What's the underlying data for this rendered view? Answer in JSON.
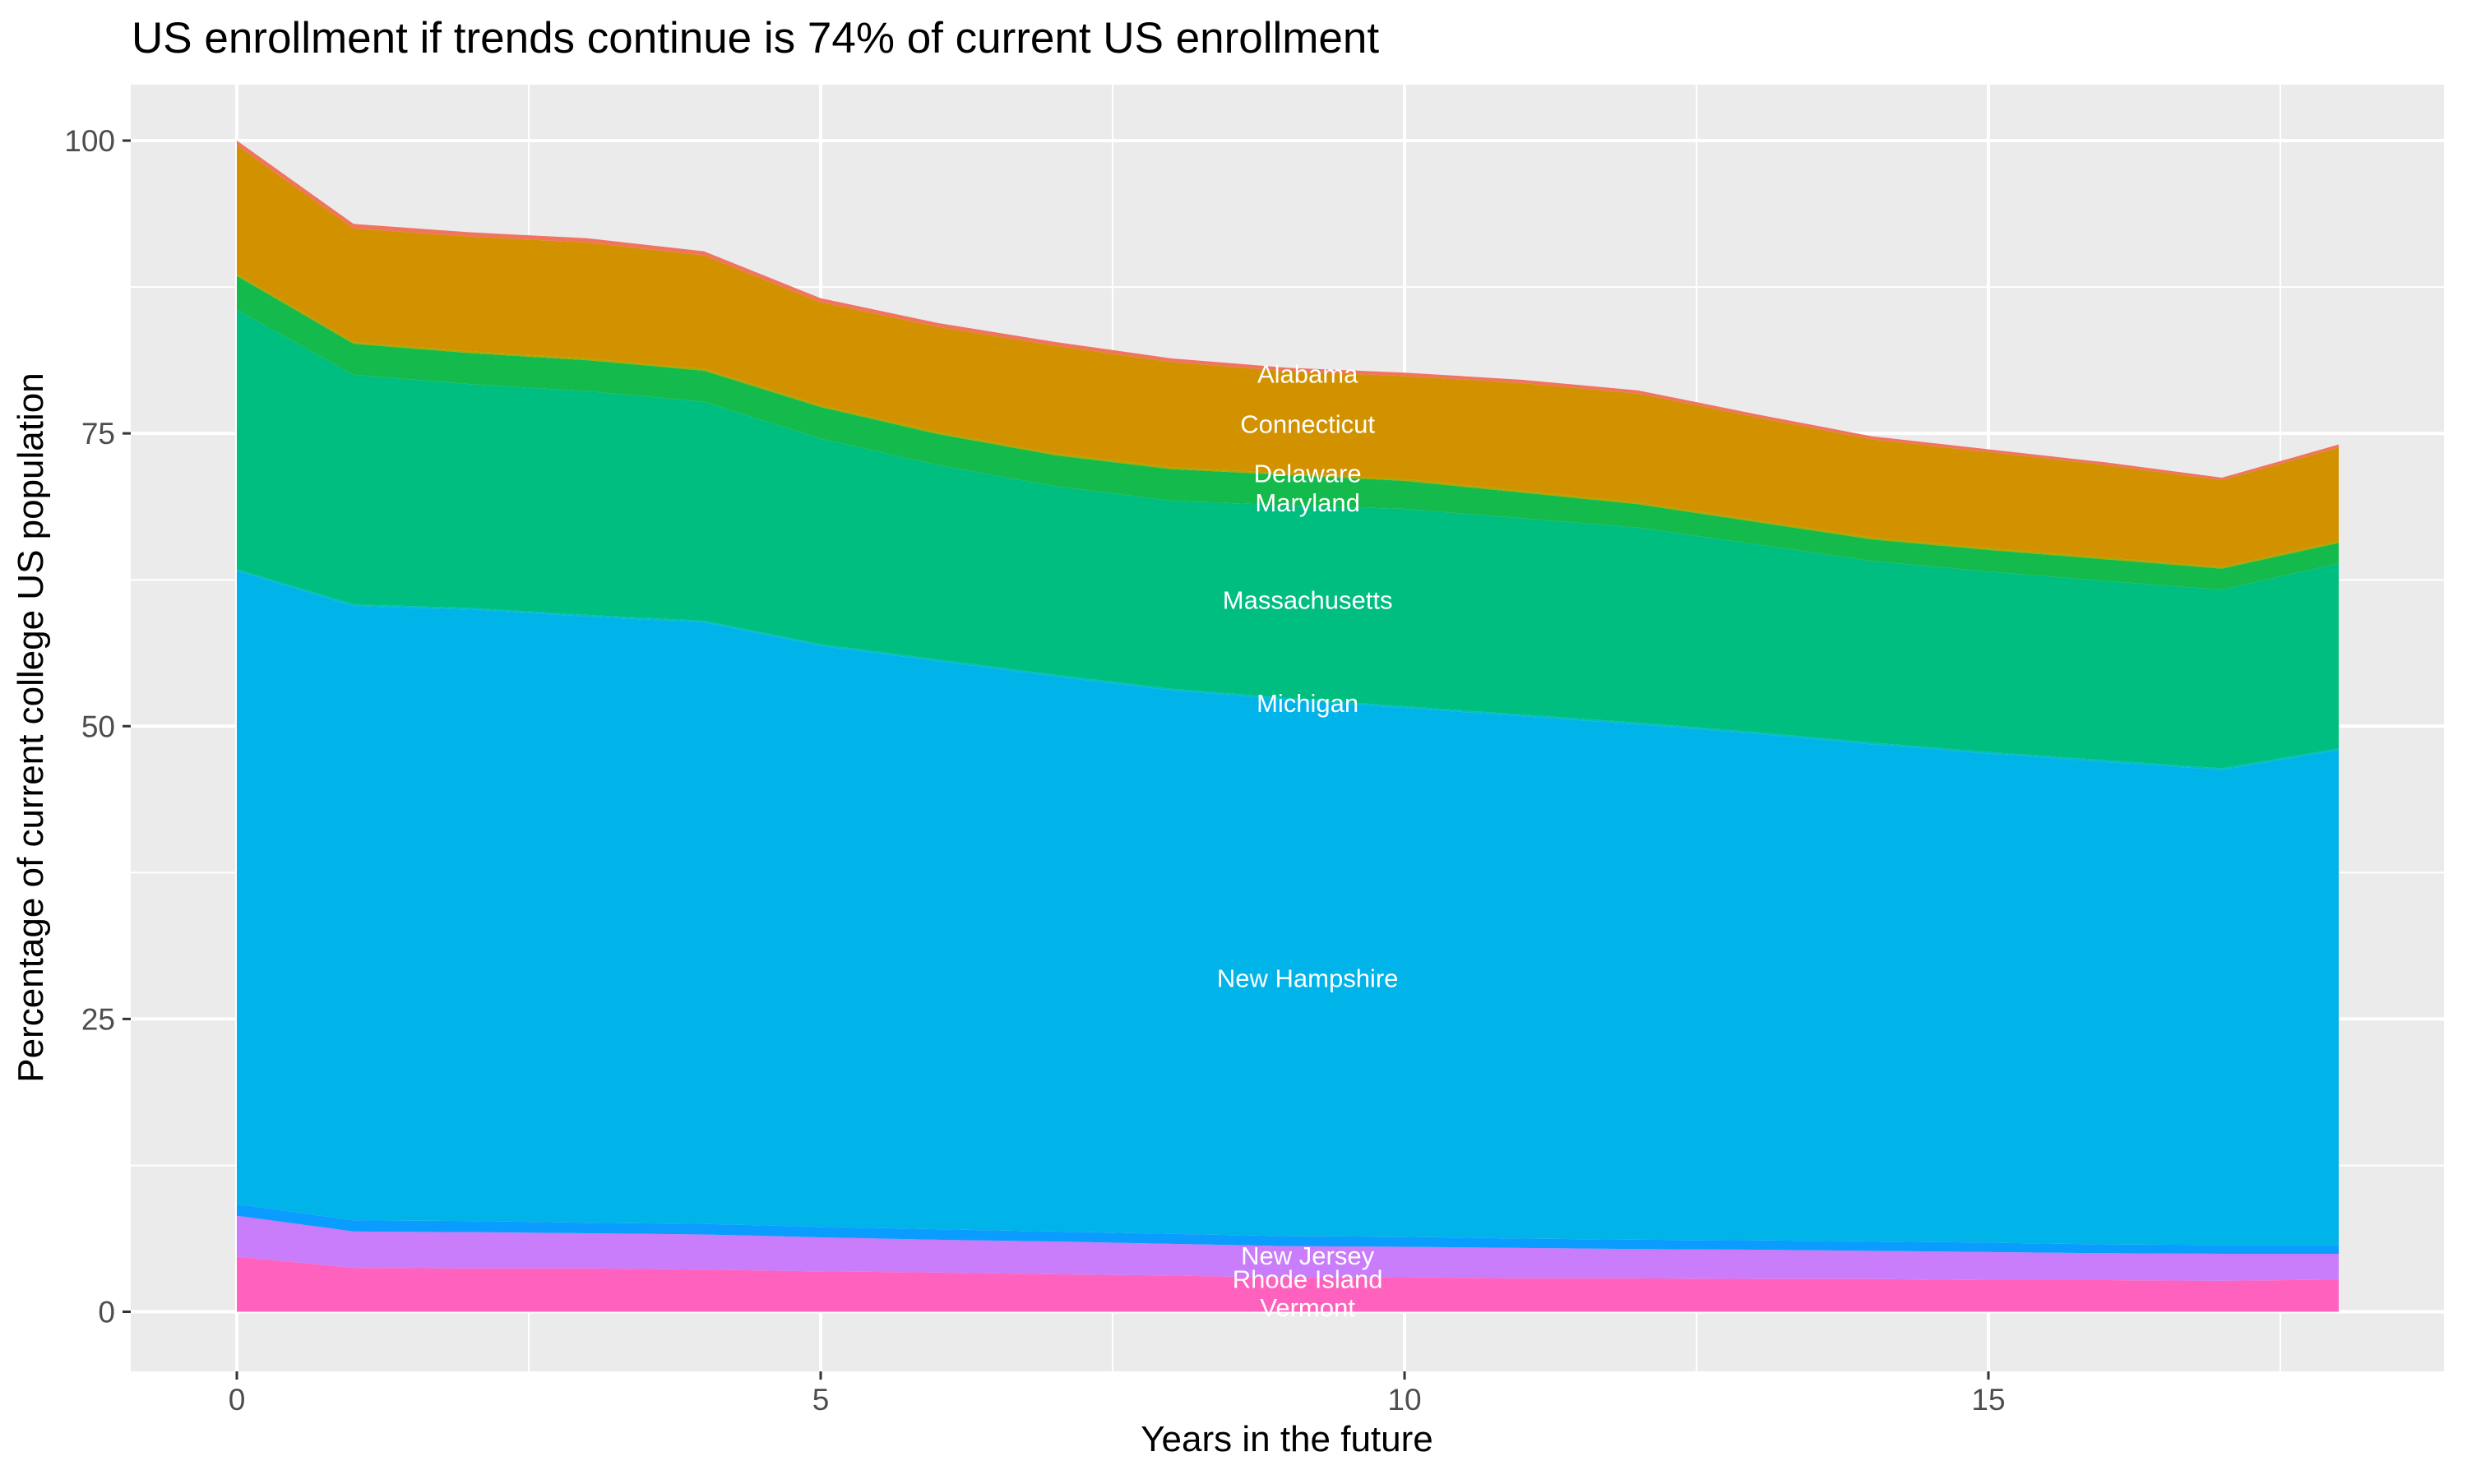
{
  "chart_data": {
    "type": "area",
    "stacked": true,
    "title": "US enrollment if trends continue is 74% of current US enrollment",
    "xlabel": "Years in the future",
    "ylabel": "Percentage of current college US population",
    "x": [
      0,
      1,
      2,
      3,
      4,
      5,
      6,
      7,
      8,
      9,
      10,
      11,
      12,
      13,
      14,
      15,
      16,
      17,
      18
    ],
    "xlim": [
      0,
      18
    ],
    "ylim": [
      0,
      100
    ],
    "x_ticks": [
      0,
      5,
      10,
      15
    ],
    "y_ticks": [
      0,
      25,
      50,
      75,
      100
    ],
    "grid": "white major and minor gridlines on gray panel",
    "legend": "none - direct white labels drawn inside bands",
    "final_total_percent": 74,
    "series": [
      {
        "id": "alabama",
        "name": "Alabama",
        "color": "#F0745E",
        "values": [
          0.4,
          0.38,
          0.37,
          0.36,
          0.35,
          0.34,
          0.33,
          0.32,
          0.31,
          0.3,
          0.29,
          0.28,
          0.27,
          0.26,
          0.25,
          0.24,
          0.23,
          0.22,
          0.25
        ]
      },
      {
        "id": "connecticut",
        "name": "Connecticut",
        "color": "#D29200",
        "values": [
          11.0,
          9.7,
          9.8,
          9.9,
          9.7,
          8.8,
          9.0,
          9.2,
          9.0,
          8.7,
          8.8,
          9.2,
          9.3,
          8.8,
          8.4,
          8.2,
          7.9,
          7.4,
          8.0
        ]
      },
      {
        "id": "delaware",
        "name": "Delaware",
        "color": "#A9A800",
        "values": [
          0.15,
          0.15,
          0.15,
          0.15,
          0.15,
          0.15,
          0.15,
          0.15,
          0.15,
          0.15,
          0.15,
          0.15,
          0.15,
          0.15,
          0.15,
          0.15,
          0.15,
          0.15,
          0.15
        ]
      },
      {
        "id": "maryland",
        "name": "Maryland",
        "color": "#15BA4C",
        "values": [
          2.9,
          2.65,
          2.65,
          2.65,
          2.65,
          2.7,
          2.65,
          2.65,
          2.7,
          2.6,
          2.4,
          2.2,
          2.0,
          1.9,
          1.85,
          1.85,
          1.85,
          1.8,
          1.75
        ]
      },
      {
        "id": "massachusetts",
        "name": "Massachusetts",
        "color": "#00BD80",
        "values": [
          22.15,
          19.6,
          19.1,
          19.1,
          18.7,
          17.55,
          16.6,
          16.1,
          16.05,
          16.45,
          16.85,
          16.75,
          16.65,
          16.05,
          15.5,
          15.4,
          15.3,
          15.25,
          15.8
        ]
      },
      {
        "id": "michigan",
        "name": "Michigan",
        "color": "#00BFC4",
        "values": [
          0.15,
          0.15,
          0.15,
          0.15,
          0.15,
          0.15,
          0.15,
          0.15,
          0.15,
          0.15,
          0.15,
          0.15,
          0.15,
          0.15,
          0.15,
          0.15,
          0.15,
          0.15,
          0.15
        ]
      },
      {
        "id": "new-hampshire",
        "name": "New Hampshire",
        "color": "#00B3E9",
        "values": [
          54.05,
          52.45,
          52.2,
          51.75,
          51.35,
          49.6,
          48.5,
          47.4,
          46.4,
          45.8,
          45.15,
          44.6,
          44.0,
          43.25,
          42.45,
          41.75,
          41.2,
          40.55,
          42.25
        ]
      },
      {
        "id": "new-jersey",
        "name": "New Jersey",
        "color": "#0A9DFF",
        "values": [
          1.0,
          0.95,
          0.95,
          0.9,
          0.9,
          0.9,
          0.9,
          0.85,
          0.85,
          0.85,
          0.85,
          0.8,
          0.8,
          0.8,
          0.8,
          0.8,
          0.75,
          0.75,
          0.75
        ]
      },
      {
        "id": "rhode-island",
        "name": "Rhode Island",
        "color": "#C97DFB",
        "values": [
          3.5,
          3.1,
          3.1,
          3.0,
          3.0,
          2.9,
          2.8,
          2.8,
          2.7,
          2.7,
          2.6,
          2.6,
          2.5,
          2.5,
          2.4,
          2.4,
          2.3,
          2.3,
          2.2
        ]
      },
      {
        "id": "vermont",
        "name": "Vermont",
        "color": "#FF62BE",
        "values": [
          4.7,
          3.75,
          3.7,
          3.7,
          3.6,
          3.45,
          3.35,
          3.2,
          3.1,
          2.9,
          2.95,
          2.85,
          2.85,
          2.8,
          2.8,
          2.7,
          2.7,
          2.65,
          2.75
        ]
      }
    ],
    "direct_labels": [
      {
        "label": "Alabama",
        "x": 9.17,
        "y": 80.1
      },
      {
        "label": "Connecticut",
        "x": 9.17,
        "y": 75.8
      },
      {
        "label": "Delaware",
        "x": 9.17,
        "y": 71.6
      },
      {
        "label": "Maryland",
        "x": 9.17,
        "y": 69.1
      },
      {
        "label": "Massachusetts",
        "x": 9.17,
        "y": 60.8
      },
      {
        "label": "Michigan",
        "x": 9.17,
        "y": 52.0
      },
      {
        "label": "New Hampshire",
        "x": 9.17,
        "y": 28.5
      },
      {
        "label": "New Jersey",
        "x": 9.17,
        "y": 4.8
      },
      {
        "label": "Rhode Island",
        "x": 9.17,
        "y": 2.8
      },
      {
        "label": "Vermont",
        "x": 9.17,
        "y": 0.4
      }
    ]
  },
  "style": {
    "panel_bg": "#EBEBEB",
    "grid_major_color": "#FFFFFF",
    "grid_minor_color": "#FFFFFF",
    "tick_mark_color": "#333333",
    "tick_label_color": "#4D4D4D",
    "title_color": "#000000",
    "area_label_color": "#FFFFFF",
    "page_bg": "#FFFFFF"
  }
}
